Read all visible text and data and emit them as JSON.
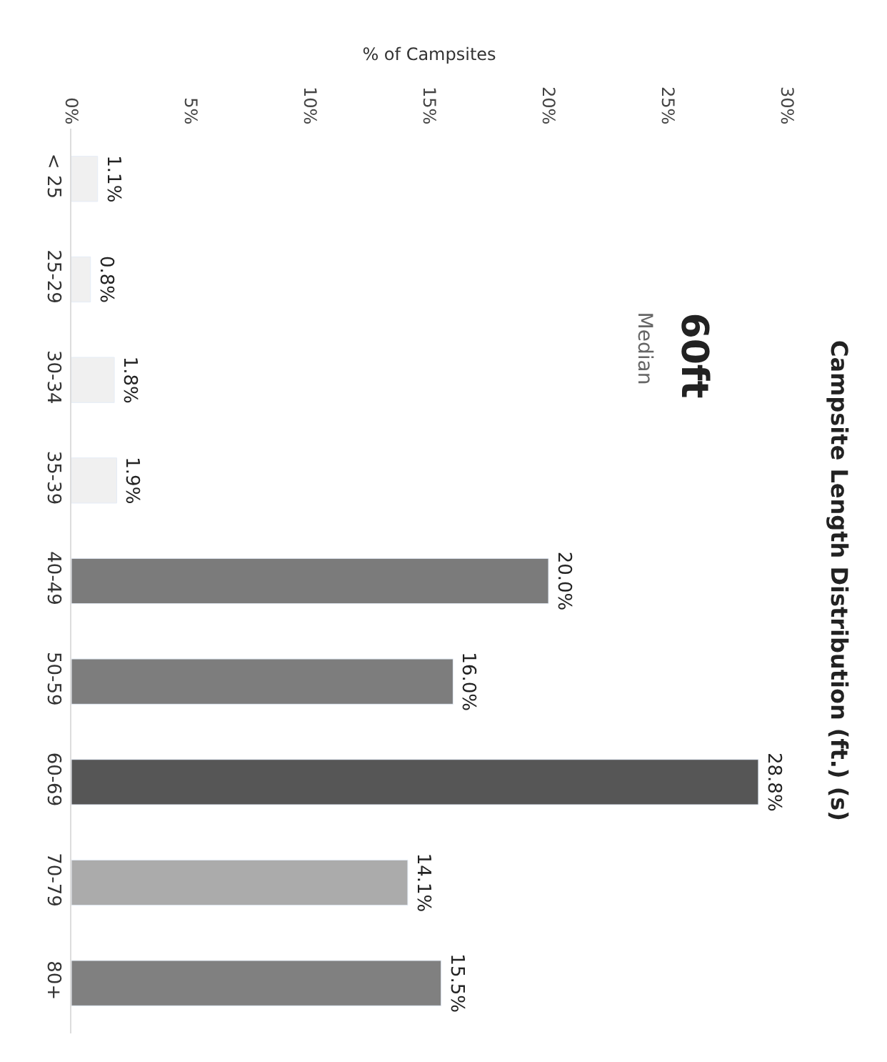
{
  "chart_data": {
    "type": "bar",
    "orientation": "horizontal",
    "title": "Campsite Length Distribution (ft.) (s)",
    "subtitle": "60ft",
    "annotations": [
      "Median"
    ],
    "xlabel": "% of Campsites",
    "categories": [
      "< 25",
      "25-29",
      "30-34",
      "35-39",
      "40-49",
      "50-59",
      "60-69",
      "70-79",
      "80+"
    ],
    "values": [
      1.1,
      0.8,
      1.8,
      1.9,
      20.0,
      16.0,
      28.8,
      14.1,
      15.5
    ],
    "value_labels": [
      "1.1%",
      "0.8%",
      "1.8%",
      "1.9%",
      "20.0%",
      "16.0%",
      "28.8%",
      "14.1%",
      "15.5%"
    ],
    "colors": [
      "#f0f0f0",
      "#f0f0f0",
      "#f0f0f0",
      "#f0f0f0",
      "#7b7b7b",
      "#7d7d7d",
      "#565656",
      "#ababab",
      "#808080"
    ],
    "xlim": [
      0,
      30
    ],
    "xticks": [
      {
        "value": 0,
        "label": "0%"
      },
      {
        "value": 5,
        "label": "5%"
      },
      {
        "value": 10,
        "label": "10%"
      },
      {
        "value": 15,
        "label": "15%"
      },
      {
        "value": 20,
        "label": "20%"
      },
      {
        "value": 25,
        "label": "25%"
      },
      {
        "value": 30,
        "label": "30%"
      }
    ]
  }
}
